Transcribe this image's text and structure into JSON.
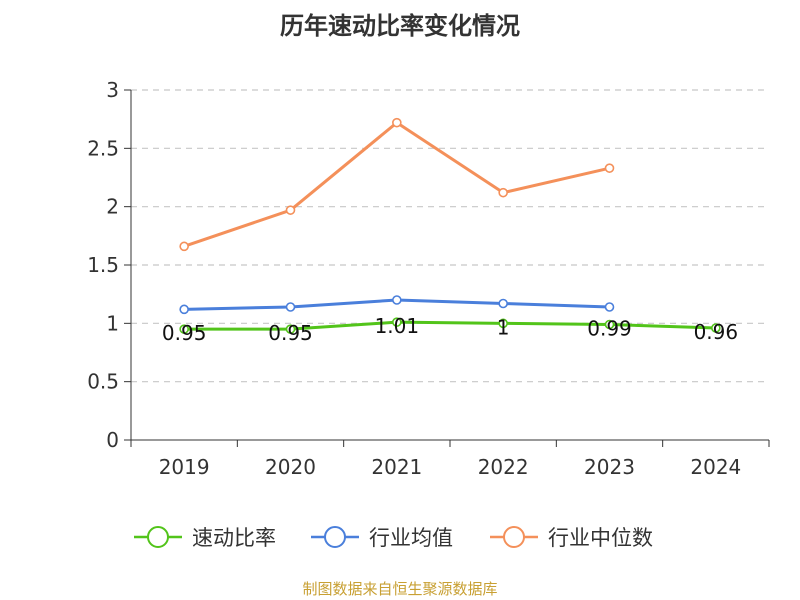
{
  "chart_data": {
    "type": "line",
    "title": "历年速动比率变化情况",
    "categories": [
      "2019",
      "2020",
      "2021",
      "2022",
      "2023",
      "2024"
    ],
    "ylim": [
      0,
      3
    ],
    "yticks": [
      "0",
      "0.5",
      "1",
      "1.5",
      "2",
      "2.5",
      "3"
    ],
    "grid": true,
    "legend_position": "bottom",
    "series": [
      {
        "name": "速动比率",
        "color": "#52c41a",
        "values": [
          0.95,
          0.95,
          1.01,
          1,
          0.99,
          0.96
        ],
        "labels": [
          "0.95",
          "0.95",
          "1.01",
          "1",
          "0.99",
          "0.96"
        ]
      },
      {
        "name": "行业均值",
        "color": "#4a7fdb",
        "values": [
          1.12,
          1.14,
          1.2,
          1.17,
          1.14,
          null
        ]
      },
      {
        "name": "行业中位数",
        "color": "#f4905a",
        "values": [
          1.66,
          1.97,
          2.72,
          2.12,
          2.33,
          null
        ]
      }
    ],
    "source": "制图数据来自恒生聚源数据库"
  }
}
